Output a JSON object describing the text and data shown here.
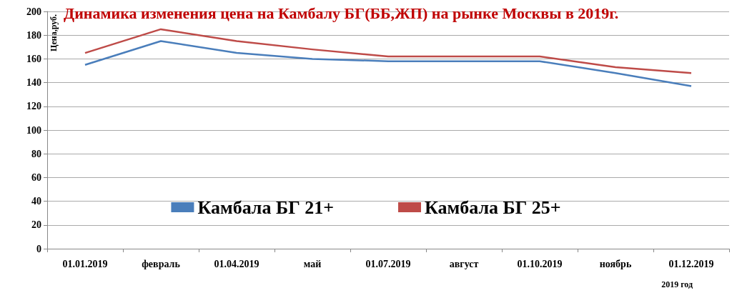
{
  "chart_data": {
    "type": "line",
    "title": "Динамика изменения цена на Камбалу БГ(ББ,ЖП) на рынке Москвы в 2019г.",
    "ylabel": "Цена,руб.",
    "xlabel": "2019 год",
    "categories": [
      "01.01.2019",
      "февраль",
      "01.04.2019",
      "май",
      "01.07.2019",
      "август",
      "01.10.2019",
      "ноябрь",
      "01.12.2019"
    ],
    "series": [
      {
        "name": "Камбала БГ 21+",
        "color": "#4a7ebb",
        "values": [
          155,
          175,
          165,
          160,
          158,
          158,
          158,
          148,
          137
        ]
      },
      {
        "name": "Камбала БГ 25+",
        "color": "#be4b48",
        "values": [
          165,
          185,
          175,
          168,
          162,
          162,
          162,
          153,
          148
        ]
      }
    ],
    "ylim": [
      0,
      200
    ],
    "yticks": [
      0,
      20,
      40,
      60,
      80,
      100,
      120,
      140,
      160,
      180,
      200
    ],
    "grid": "y",
    "legend": "bottom",
    "marker": "none",
    "line_style": "solid"
  }
}
